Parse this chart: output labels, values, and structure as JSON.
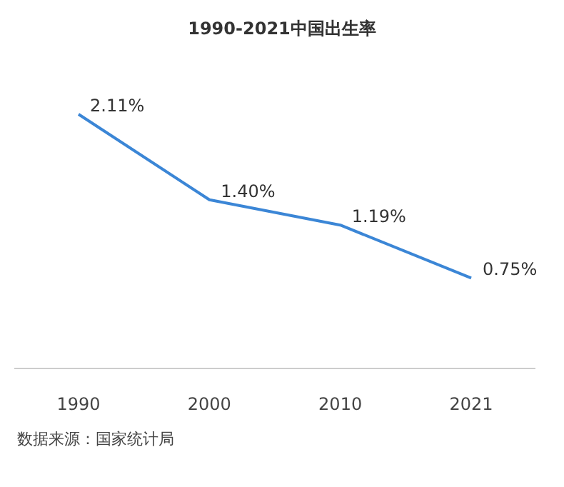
{
  "chart_data": {
    "type": "line",
    "title": "1990-2021中国出生率",
    "categories": [
      "1990",
      "2000",
      "2010",
      "2021"
    ],
    "series": [
      {
        "color": "#3b86d6",
        "values": [
          2.11,
          1.4,
          1.19,
          0.75
        ],
        "value_labels": [
          "2.11%",
          "1.40%",
          "1.19%",
          "0.75%"
        ]
      }
    ],
    "annotations": [
      "数据来源：国家统计局"
    ]
  }
}
